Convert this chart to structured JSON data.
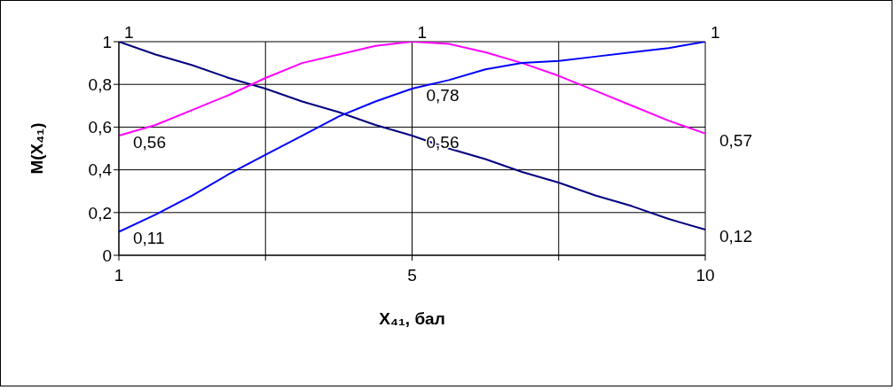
{
  "chart_data": {
    "type": "line",
    "xlabel": "X₄₁, бал",
    "ylabel": "M(X₄₁)",
    "categories": [
      "1",
      null,
      null,
      null,
      null,
      null,
      null,
      null,
      "5",
      null,
      null,
      null,
      null,
      null,
      null,
      null,
      "10"
    ],
    "series": [
      {
        "color": "#000080",
        "values": [
          1,
          0.94,
          0.89,
          0.83,
          0.78,
          0.72,
          0.67,
          0.61,
          0.56,
          0.5,
          0.45,
          0.39,
          0.34,
          0.28,
          0.23,
          0.17,
          0.12
        ],
        "value_labels": [
          "1",
          null,
          null,
          null,
          null,
          null,
          null,
          null,
          "0,56",
          null,
          null,
          null,
          null,
          null,
          null,
          null,
          "0,12"
        ]
      },
      {
        "color": "#ff00ff",
        "values": [
          0.56,
          0.61,
          0.68,
          0.75,
          0.83,
          0.9,
          0.94,
          0.98,
          1,
          0.99,
          0.95,
          0.9,
          0.84,
          0.77,
          0.7,
          0.63,
          0.57
        ],
        "value_labels": [
          "0,56",
          null,
          null,
          null,
          null,
          null,
          null,
          null,
          "1",
          null,
          null,
          null,
          null,
          null,
          null,
          null,
          "0,57"
        ]
      },
      {
        "color": "#0000ff",
        "values": [
          0.11,
          0.19,
          0.28,
          0.38,
          0.47,
          0.56,
          0.65,
          0.72,
          0.78,
          0.82,
          0.87,
          0.9,
          0.91,
          0.93,
          0.95,
          0.97,
          1
        ],
        "value_labels": [
          "0,11",
          null,
          null,
          null,
          null,
          null,
          null,
          null,
          "0,78",
          null,
          null,
          null,
          null,
          null,
          null,
          null,
          "1"
        ]
      }
    ],
    "ylim": [
      0,
      1
    ],
    "yticks": [
      0,
      {
        "value": 0.2,
        "label": "0,2"
      },
      {
        "value": 0.4,
        "label": "0,4"
      },
      {
        "value": 0.6,
        "label": "0,6"
      },
      {
        "value": 0.8,
        "label": "0,8"
      },
      1
    ],
    "grid": true,
    "legend": false,
    "marker": "none",
    "line_style": "solid"
  }
}
